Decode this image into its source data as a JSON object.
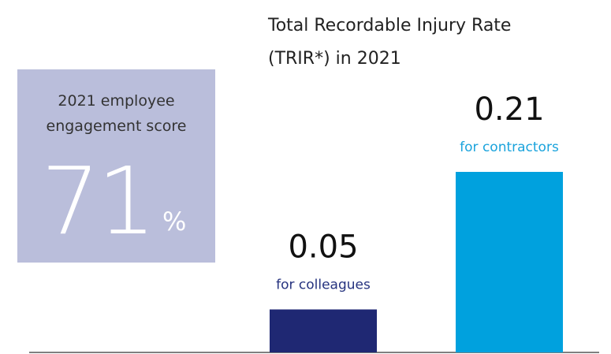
{
  "chart_data": {
    "type": "bar",
    "title": "Total Recordable Injury Rate (TRIR*) in 2021",
    "categories": [
      "for colleagues",
      "for contractors"
    ],
    "values": [
      0.05,
      0.21
    ],
    "colors": [
      "#1f2873",
      "#00a1de"
    ],
    "label_colors": [
      "#26337f",
      "#1aa3dc"
    ],
    "ylim": [
      0,
      0.21
    ],
    "callout": {
      "label": "2021 employee engagement score",
      "value": 71,
      "unit": "%",
      "color": "#babedb"
    }
  }
}
